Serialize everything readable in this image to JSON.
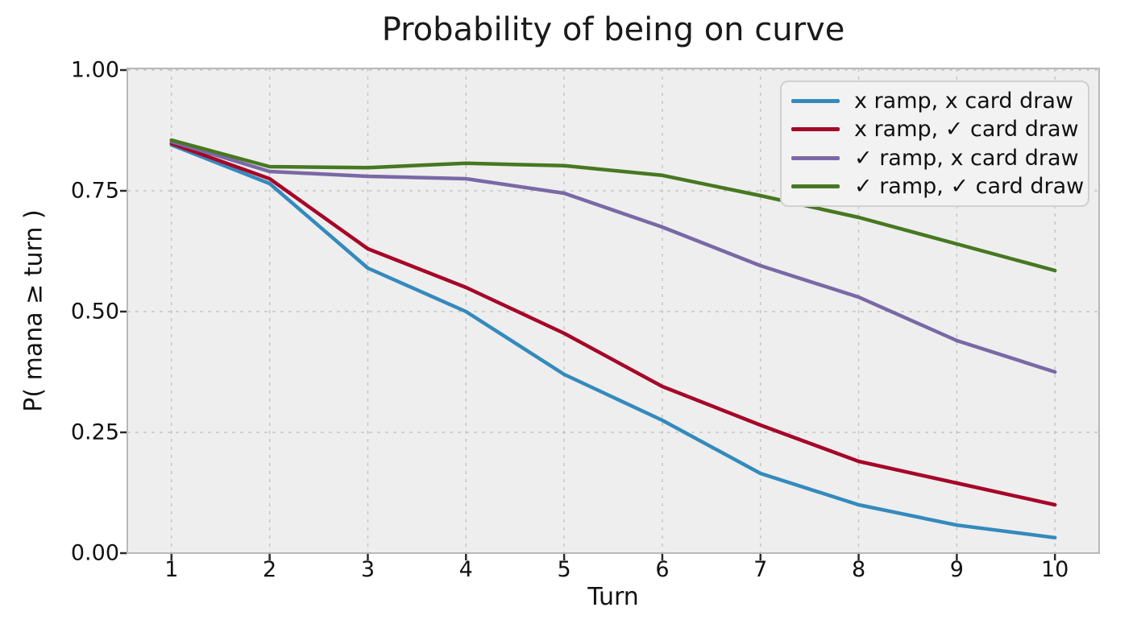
{
  "figure": {
    "title": "Probability of being on curve"
  },
  "chart_data": {
    "type": "line",
    "title": "Probability of being on curve",
    "xlabel": "Turn",
    "ylabel": "P( mana ≥ turn )",
    "x": [
      1,
      2,
      3,
      4,
      5,
      6,
      7,
      8,
      9,
      10
    ],
    "xtick_labels": [
      "1",
      "2",
      "3",
      "4",
      "5",
      "6",
      "7",
      "8",
      "9",
      "10"
    ],
    "yticks": [
      0.0,
      0.25,
      0.5,
      0.75,
      1.0
    ],
    "ytick_labels": [
      "0.00",
      "0.25",
      "0.50",
      "0.75",
      "1.00"
    ],
    "xlim": [
      0.55,
      10.45
    ],
    "ylim": [
      0.0,
      1.0
    ],
    "grid": true,
    "grid_linestyle": "dashed",
    "legend_position": "upper right",
    "series": [
      {
        "name": "x ramp, x card draw",
        "color": "#348ABD",
        "values": [
          0.845,
          0.765,
          0.59,
          0.5,
          0.37,
          0.275,
          0.165,
          0.1,
          0.058,
          0.032
        ]
      },
      {
        "name": "x ramp, ✓ card draw",
        "color": "#A60628",
        "values": [
          0.848,
          0.775,
          0.63,
          0.55,
          0.455,
          0.345,
          0.265,
          0.19,
          0.145,
          0.1
        ]
      },
      {
        "name": "✓ ramp, x card draw",
        "color": "#7A68A6",
        "values": [
          0.852,
          0.79,
          0.78,
          0.775,
          0.745,
          0.675,
          0.595,
          0.53,
          0.44,
          0.375
        ]
      },
      {
        "name": "✓ ramp, ✓ card draw",
        "color": "#467821",
        "values": [
          0.855,
          0.8,
          0.798,
          0.807,
          0.802,
          0.782,
          0.74,
          0.695,
          0.64,
          0.585
        ]
      }
    ]
  },
  "colors": {
    "figure_bg": "#ffffff",
    "axes_bg": "#eeeeee",
    "grid": "#c6c6c6",
    "spine": "#b8b8b8",
    "tick": "#2a2a2a",
    "legend_bg": "#f2f2f2",
    "legend_border": "#d0d0d0"
  }
}
